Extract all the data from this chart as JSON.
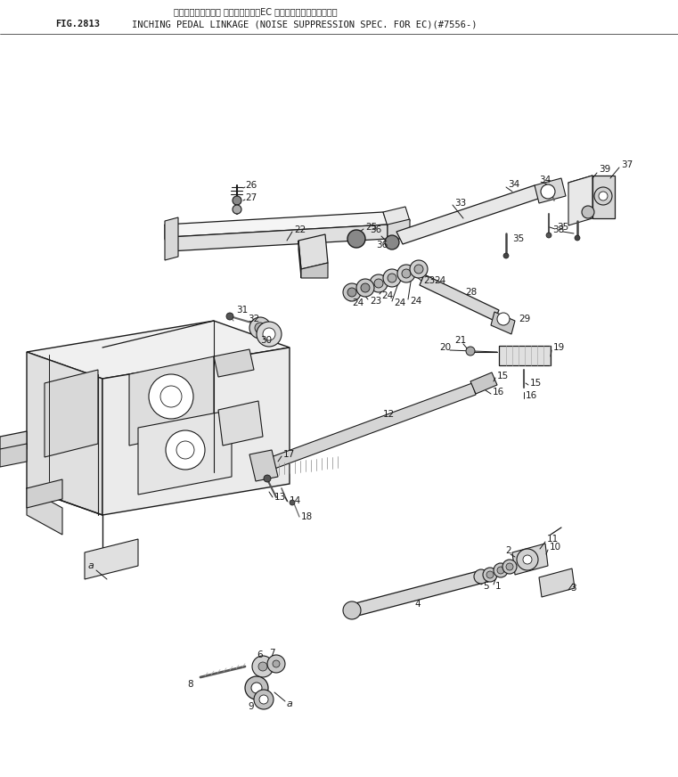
{
  "fig_label": "FIG.2813",
  "title_line1": "インチング　ペダル リンケージ　（EC のノイズサプレッション）",
  "title_line2": "INCHING PEDAL LINKAGE (NOISE SUPPRESSION SPEC. FOR EC)(#7556-)",
  "bg_color": "#ffffff",
  "lc": "#1a1a1a"
}
